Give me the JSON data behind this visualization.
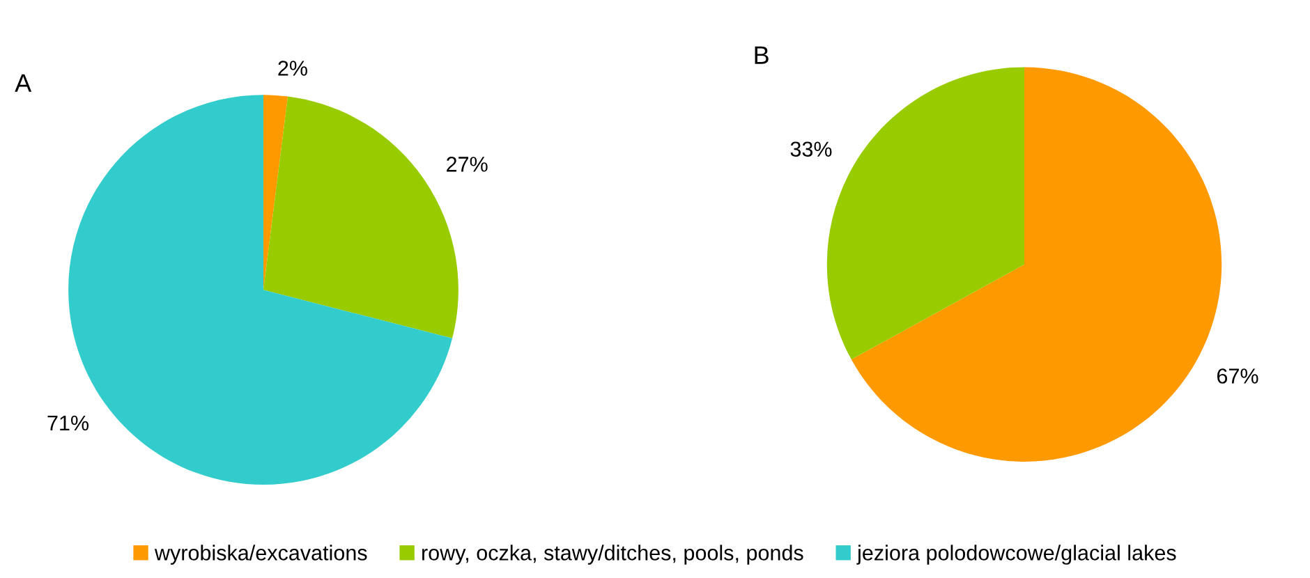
{
  "chart_data": [
    {
      "type": "pie",
      "title": "A",
      "categories": [
        "wyrobiska/excavations",
        "rowy, oczka, stawy/ditches, pools, ponds",
        "jeziora polodowcowe/glacial lakes"
      ],
      "values": [
        2,
        27,
        71
      ],
      "value_labels": [
        "2%",
        "27%",
        "71%"
      ],
      "colors": [
        "#ff9900",
        "#99cc00",
        "#33cccc"
      ],
      "legend": "bottom"
    },
    {
      "type": "pie",
      "title": "B",
      "categories": [
        null,
        null
      ],
      "values": [
        67,
        33
      ],
      "value_labels": [
        "67%",
        "33%"
      ],
      "colors": [
        "#ff9900",
        "#99cc00"
      ]
    }
  ]
}
